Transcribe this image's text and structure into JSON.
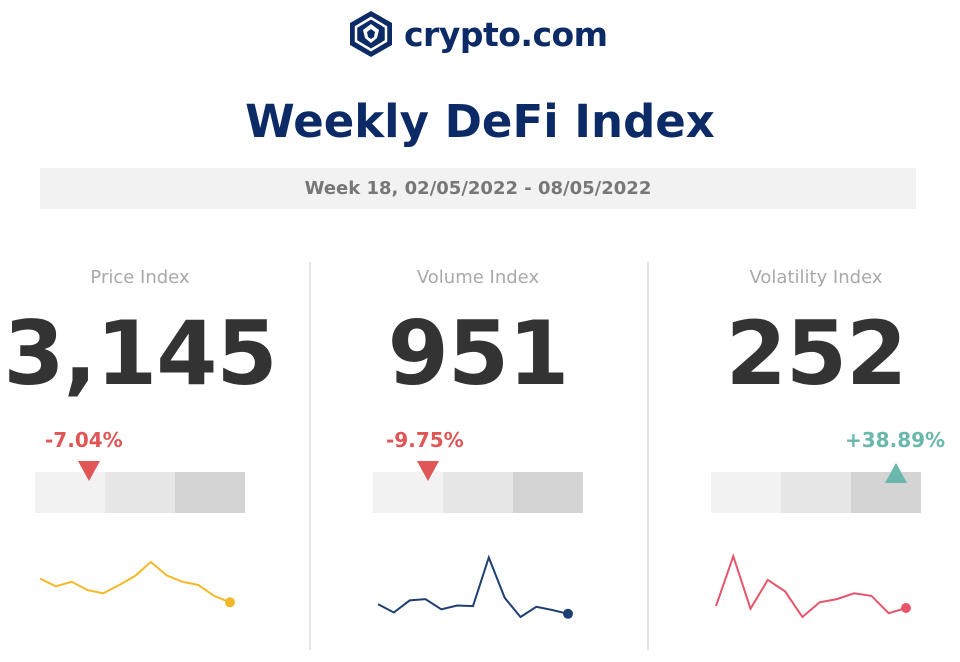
{
  "brand": {
    "name": "crypto.com",
    "logo_icon": "lion-shield-icon",
    "color": "#0b2a66"
  },
  "title": "Weekly DeFi Index",
  "week": "Week 18, 02/05/2022 - 08/05/2022",
  "colors": {
    "negative": "#e05656",
    "positive": "#6ab7ad",
    "price_line": "#f5b829",
    "volume_line": "#1e3f73",
    "volatility_line": "#e8556a"
  },
  "chart_data": [
    {
      "type": "line",
      "title": "Price Index",
      "value": "3,145",
      "change": "-7.04%",
      "direction": "down",
      "gauge_position": 0.25,
      "series": [
        {
          "values": [
            0.6,
            0.48,
            0.55,
            0.42,
            0.37,
            0.5,
            0.64,
            0.86,
            0.65,
            0.55,
            0.5,
            0.33,
            0.23
          ]
        }
      ]
    },
    {
      "type": "line",
      "title": "Volume Index",
      "value": "951",
      "change": "-9.75%",
      "direction": "down",
      "gauge_position": 0.26,
      "series": [
        {
          "values": [
            0.2,
            0.07,
            0.26,
            0.28,
            0.12,
            0.18,
            0.17,
            0.93,
            0.3,
            0.0,
            0.16,
            0.11,
            0.05
          ]
        }
      ]
    },
    {
      "type": "line",
      "title": "Volatility Index",
      "value": "252",
      "change": "+38.89%",
      "direction": "up",
      "gauge_position": 0.85,
      "series": [
        {
          "values": [
            0.17,
            0.95,
            0.13,
            0.58,
            0.4,
            0.0,
            0.23,
            0.28,
            0.37,
            0.33,
            0.06,
            0.14
          ]
        }
      ]
    }
  ]
}
